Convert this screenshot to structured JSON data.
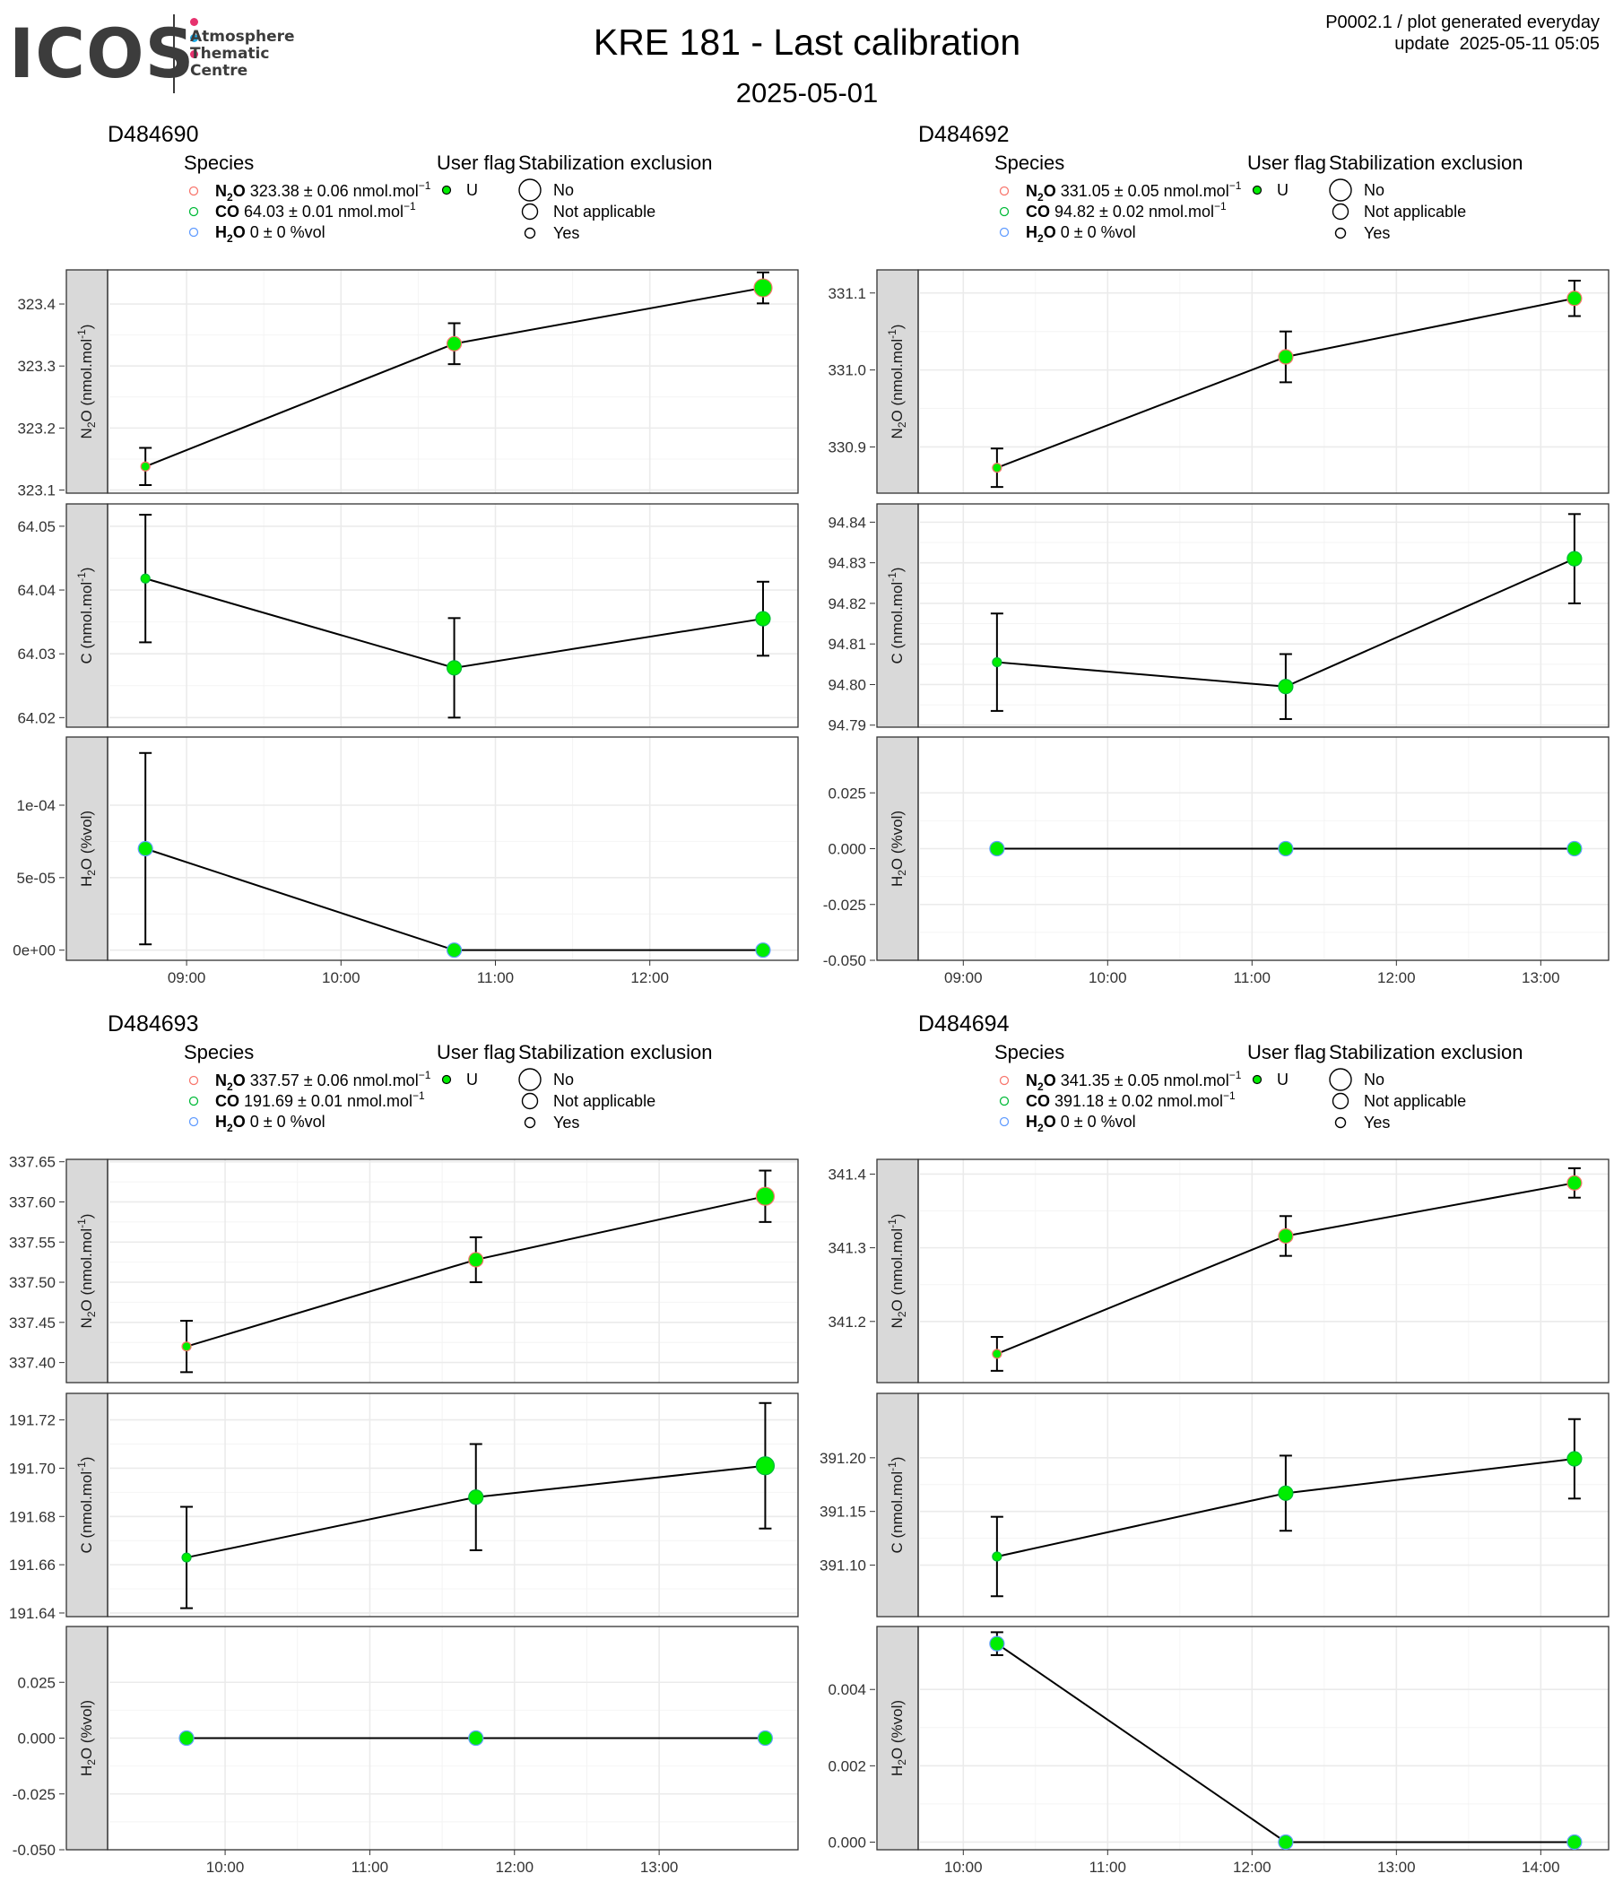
{
  "header": {
    "logo_word": "ICOS",
    "logo_text": [
      "Atmosphere",
      "Thematic",
      "Centre"
    ],
    "logo_dot_colors": [
      "#e6326e",
      "#1eaae6",
      "#e6326e"
    ],
    "title": "KRE 181 - Last calibration",
    "subtitle": "2025-05-01",
    "code_line1": "P0002.1 / plot generated everyday",
    "code_line2": "update  2025-05-11 05:05"
  },
  "legend_labels": {
    "species_title": "Species",
    "flag_title": "User flag",
    "stab_title": "Stabilization exclusion",
    "flag_value": "U",
    "stab_values": [
      "No",
      "Not applicable",
      "Yes"
    ]
  },
  "colors": {
    "point_fill": "#00ee00",
    "n2o_ring": "#f8766d",
    "co_ring": "#00ba38",
    "h2o_ring": "#619cff",
    "line": "#000000",
    "strip_bg": "#d9d9d9",
    "grid": "#ebebeb"
  },
  "chart_data": [
    {
      "type": "line",
      "title": "D484690",
      "species_legend": [
        {
          "name": "N",
          "sub": "2",
          "tail": "O",
          "value": "323.38 ± 0.06 nmol.mol",
          "sup": "−1"
        },
        {
          "name": "CO",
          "sub": "",
          "tail": "",
          "value": "64.03 ± 0.01 nmol.mol",
          "sup": "−1"
        },
        {
          "name": "H",
          "sub": "2",
          "tail": "O",
          "value": "0 ± 0 %vol",
          "sup": ""
        }
      ],
      "x_ticks": [
        "09:00",
        "10:00",
        "11:00",
        "12:00"
      ],
      "x_hours": [
        9,
        10,
        11,
        12
      ],
      "x_range_hours": [
        8.5,
        12.96
      ],
      "facets": [
        {
          "ylabel": "N2O (nmol.mol-1)",
          "ylim": [
            323.095,
            323.455
          ],
          "yticks": [
            323.1,
            323.2,
            323.3,
            323.4
          ],
          "ytick_labels": [
            "323.1",
            "323.2",
            "323.3",
            "323.4"
          ],
          "points": [
            {
              "x": "08:44",
              "y": 323.138,
              "err": 0.03,
              "size": "Yes"
            },
            {
              "x": "10:44",
              "y": 323.336,
              "err": 0.033,
              "size": "Not applicable"
            },
            {
              "x": "12:44",
              "y": 323.426,
              "err": 0.025,
              "size": "No"
            }
          ]
        },
        {
          "ylabel": "CO (nmol.mol-1)",
          "ylim": [
            64.0185,
            64.0535
          ],
          "yticks": [
            64.02,
            64.03,
            64.04,
            64.05
          ],
          "ytick_labels": [
            "64.02",
            "64.03",
            "64.04",
            "64.05"
          ],
          "points": [
            {
              "x": "08:44",
              "y": 64.0418,
              "err": 0.01,
              "size": "Yes"
            },
            {
              "x": "10:44",
              "y": 64.0278,
              "err": 0.0078,
              "size": "Not applicable"
            },
            {
              "x": "12:44",
              "y": 64.0355,
              "err": 0.0058,
              "size": "Not applicable"
            }
          ]
        },
        {
          "ylabel": "H2O (%vol)",
          "ylim": [
            -7e-06,
            0.000147
          ],
          "yticks": [
            0,
            5e-05,
            0.0001
          ],
          "ytick_labels": [
            "0e+00",
            "5e-05",
            "1e-04"
          ],
          "points": [
            {
              "x": "08:44",
              "y": 7e-05,
              "err": 6.6e-05,
              "size": "Not applicable"
            },
            {
              "x": "10:44",
              "y": 0,
              "err": 0,
              "size": "Not applicable"
            },
            {
              "x": "12:44",
              "y": 0,
              "err": 0,
              "size": "Not applicable"
            }
          ]
        }
      ]
    },
    {
      "type": "line",
      "title": "D484692",
      "species_legend": [
        {
          "name": "N",
          "sub": "2",
          "tail": "O",
          "value": "331.05 ± 0.05 nmol.mol",
          "sup": "−1"
        },
        {
          "name": "CO",
          "sub": "",
          "tail": "",
          "value": "94.82 ± 0.02 nmol.mol",
          "sup": "−1"
        },
        {
          "name": "H",
          "sub": "2",
          "tail": "O",
          "value": "0 ± 0 %vol",
          "sup": ""
        }
      ],
      "x_ticks": [
        "09:00",
        "10:00",
        "11:00",
        "12:00",
        "13:00"
      ],
      "x_hours": [
        9,
        10,
        11,
        12,
        13
      ],
      "x_range_hours": [
        8.7,
        13.47
      ],
      "facets": [
        {
          "ylabel": "N2O (nmol.mol-1)",
          "ylim": [
            330.84,
            331.13
          ],
          "yticks": [
            330.9,
            331.0,
            331.1
          ],
          "ytick_labels": [
            "330.9",
            "331.0",
            "331.1"
          ],
          "points": [
            {
              "x": "09:14",
              "y": 330.873,
              "err": 0.025,
              "size": "Yes"
            },
            {
              "x": "11:14",
              "y": 331.017,
              "err": 0.033,
              "size": "Not applicable"
            },
            {
              "x": "13:14",
              "y": 331.093,
              "err": 0.023,
              "size": "Not applicable"
            }
          ]
        },
        {
          "ylabel": "CO (nmol.mol-1)",
          "ylim": [
            94.7895,
            94.8445
          ],
          "yticks": [
            94.79,
            94.8,
            94.81,
            94.82,
            94.83,
            94.84
          ],
          "ytick_labels": [
            "94.79",
            "94.80",
            "94.81",
            "94.82",
            "94.83",
            "94.84"
          ],
          "points": [
            {
              "x": "09:14",
              "y": 94.8055,
              "err": 0.012,
              "size": "Yes"
            },
            {
              "x": "11:14",
              "y": 94.7995,
              "err": 0.008,
              "size": "Not applicable"
            },
            {
              "x": "13:14",
              "y": 94.831,
              "err": 0.011,
              "size": "Not applicable"
            }
          ]
        },
        {
          "ylabel": "H2O (%vol)",
          "ylim": [
            -0.05,
            0.05
          ],
          "yticks": [
            -0.05,
            -0.025,
            0,
            0.025
          ],
          "ytick_labels": [
            "-0.050",
            "-0.025",
            "0.000",
            "0.025"
          ],
          "points": [
            {
              "x": "09:14",
              "y": 0,
              "err": 0,
              "size": "Not applicable"
            },
            {
              "x": "11:14",
              "y": 0,
              "err": 0,
              "size": "Not applicable"
            },
            {
              "x": "13:14",
              "y": 0,
              "err": 0,
              "size": "Not applicable"
            }
          ]
        }
      ]
    },
    {
      "type": "line",
      "title": "D484693",
      "species_legend": [
        {
          "name": "N",
          "sub": "2",
          "tail": "O",
          "value": "337.57 ± 0.06 nmol.mol",
          "sup": "−1"
        },
        {
          "name": "CO",
          "sub": "",
          "tail": "",
          "value": "191.69 ± 0.01 nmol.mol",
          "sup": "−1"
        },
        {
          "name": "H",
          "sub": "2",
          "tail": "O",
          "value": "0 ± 0 %vol",
          "sup": ""
        }
      ],
      "x_ticks": [
        "10:00",
        "11:00",
        "12:00",
        "13:00"
      ],
      "x_hours": [
        10,
        11,
        12,
        13
      ],
      "x_range_hours": [
        9.2,
        13.96
      ],
      "facets": [
        {
          "ylabel": "N2O (nmol.mol-1)",
          "ylim": [
            337.375,
            337.653
          ],
          "yticks": [
            337.4,
            337.45,
            337.5,
            337.55,
            337.6,
            337.65
          ],
          "ytick_labels": [
            "337.40",
            "337.45",
            "337.50",
            "337.55",
            "337.60",
            "337.65"
          ],
          "points": [
            {
              "x": "09:44",
              "y": 337.42,
              "err": 0.032,
              "size": "Yes"
            },
            {
              "x": "11:44",
              "y": 337.528,
              "err": 0.028,
              "size": "Not applicable"
            },
            {
              "x": "13:44",
              "y": 337.607,
              "err": 0.032,
              "size": "No"
            }
          ]
        },
        {
          "ylabel": "CO (nmol.mol-1)",
          "ylim": [
            191.6385,
            191.731
          ],
          "yticks": [
            191.64,
            191.66,
            191.68,
            191.7,
            191.72
          ],
          "ytick_labels": [
            "191.64",
            "191.66",
            "191.68",
            "191.70",
            "191.72"
          ],
          "points": [
            {
              "x": "09:44",
              "y": 191.663,
              "err": 0.021,
              "size": "Yes"
            },
            {
              "x": "11:44",
              "y": 191.688,
              "err": 0.022,
              "size": "Not applicable"
            },
            {
              "x": "13:44",
              "y": 191.701,
              "err": 0.026,
              "size": "No"
            }
          ]
        },
        {
          "ylabel": "H2O (%vol)",
          "ylim": [
            -0.05,
            0.05
          ],
          "yticks": [
            -0.05,
            -0.025,
            0,
            0.025
          ],
          "ytick_labels": [
            "-0.050",
            "-0.025",
            "0.000",
            "0.025"
          ],
          "points": [
            {
              "x": "09:44",
              "y": 0,
              "err": 0,
              "size": "Not applicable"
            },
            {
              "x": "11:44",
              "y": 0,
              "err": 0,
              "size": "Not applicable"
            },
            {
              "x": "13:44",
              "y": 0,
              "err": 0,
              "size": "Not applicable"
            }
          ]
        }
      ]
    },
    {
      "type": "line",
      "title": "D484694",
      "species_legend": [
        {
          "name": "N",
          "sub": "2",
          "tail": "O",
          "value": "341.35 ± 0.05 nmol.mol",
          "sup": "−1"
        },
        {
          "name": "CO",
          "sub": "",
          "tail": "",
          "value": "391.18 ± 0.02 nmol.mol",
          "sup": "−1"
        },
        {
          "name": "H",
          "sub": "2",
          "tail": "O",
          "value": "0 ± 0 %vol",
          "sup": ""
        }
      ],
      "x_ticks": [
        "10:00",
        "11:00",
        "12:00",
        "13:00",
        "14:00"
      ],
      "x_hours": [
        10,
        11,
        12,
        13,
        14
      ],
      "x_range_hours": [
        9.7,
        14.47
      ],
      "facets": [
        {
          "ylabel": "N2O (nmol.mol-1)",
          "ylim": [
            341.117,
            341.42
          ],
          "yticks": [
            341.2,
            341.3,
            341.4
          ],
          "ytick_labels": [
            "341.2",
            "341.3",
            "341.4"
          ],
          "points": [
            {
              "x": "10:14",
              "y": 341.156,
              "err": 0.023,
              "size": "Yes"
            },
            {
              "x": "12:14",
              "y": 341.316,
              "err": 0.027,
              "size": "Not applicable"
            },
            {
              "x": "14:14",
              "y": 341.388,
              "err": 0.02,
              "size": "Not applicable"
            }
          ]
        },
        {
          "ylabel": "CO (nmol.mol-1)",
          "ylim": [
            391.052,
            391.26
          ],
          "yticks": [
            391.1,
            391.15,
            391.2
          ],
          "ytick_labels": [
            "391.10",
            "391.15",
            "391.20"
          ],
          "points": [
            {
              "x": "10:14",
              "y": 391.108,
              "err": 0.037,
              "size": "Yes"
            },
            {
              "x": "12:14",
              "y": 391.167,
              "err": 0.035,
              "size": "Not applicable"
            },
            {
              "x": "14:14",
              "y": 391.199,
              "err": 0.037,
              "size": "Not applicable"
            }
          ]
        },
        {
          "ylabel": "H2O (%vol)",
          "ylim": [
            -0.0002,
            0.00565
          ],
          "yticks": [
            0,
            0.002,
            0.004
          ],
          "ytick_labels": [
            "0.000",
            "0.002",
            "0.004"
          ],
          "points": [
            {
              "x": "10:14",
              "y": 0.0052,
              "err": 0.0003,
              "size": "Not applicable"
            },
            {
              "x": "12:14",
              "y": 0,
              "err": 0,
              "size": "Not applicable"
            },
            {
              "x": "14:14",
              "y": 0,
              "err": 0,
              "size": "Not applicable"
            }
          ]
        }
      ]
    }
  ]
}
